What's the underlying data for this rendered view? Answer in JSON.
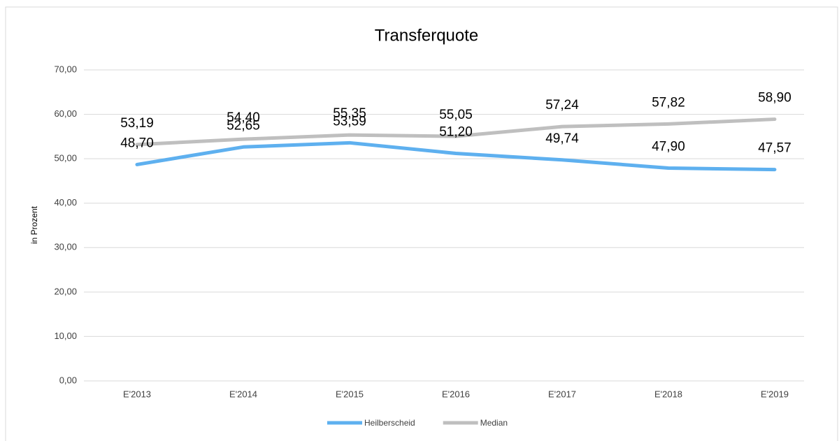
{
  "chart_data": {
    "type": "line",
    "title": "Transferquote",
    "y_label": "in Prozent",
    "categories": [
      "E'2013",
      "E'2014",
      "E'2015",
      "E'2016",
      "E'2017",
      "E'2018",
      "E'2019"
    ],
    "series": [
      {
        "name": "Heilberscheid",
        "color": "#5eb0ef",
        "values": [
          48.7,
          52.65,
          53.59,
          51.2,
          49.74,
          47.9,
          47.57
        ],
        "value_labels": [
          "48,70",
          "52,65",
          "53,59",
          "51,20",
          "49,74",
          "47,90",
          "47,57"
        ]
      },
      {
        "name": "Median",
        "color": "#bfbfbf",
        "values": [
          53.19,
          54.4,
          55.35,
          55.05,
          57.24,
          57.82,
          58.9
        ],
        "value_labels": [
          "53,19",
          "54,40",
          "55,35",
          "55,05",
          "57,24",
          "57,82",
          "58,90"
        ]
      }
    ],
    "ylim": [
      0,
      70
    ],
    "yticks": [
      {
        "value": 0,
        "label": "0,00"
      },
      {
        "value": 10,
        "label": "10,00"
      },
      {
        "value": 20,
        "label": "20,00"
      },
      {
        "value": 30,
        "label": "30,00"
      },
      {
        "value": 40,
        "label": "40,00"
      },
      {
        "value": 50,
        "label": "50,00"
      },
      {
        "value": 60,
        "label": "60,00"
      },
      {
        "value": 70,
        "label": "70,00"
      }
    ],
    "grid": true,
    "legend": "bottom"
  }
}
